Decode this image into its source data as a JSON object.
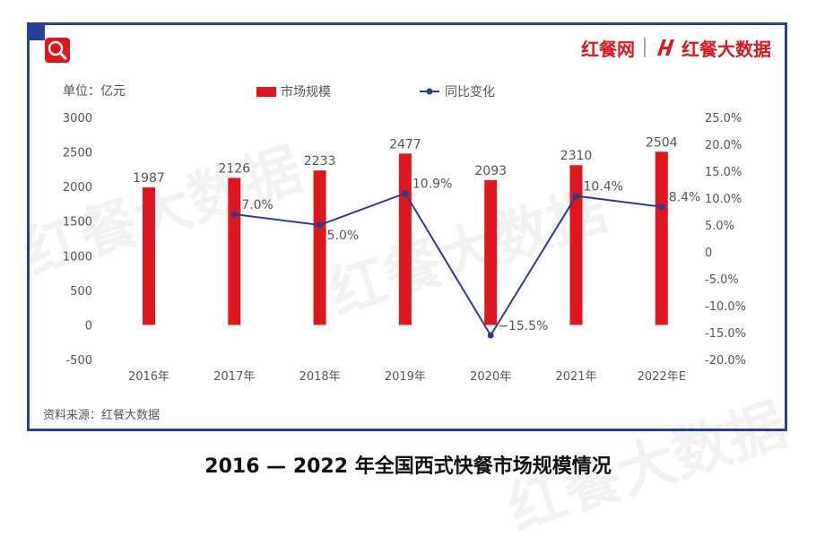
{
  "brand": {
    "name": "红餐网",
    "sub_name": "红餐大数据"
  },
  "footer": {
    "source": "资料来源：红餐大数据"
  },
  "caption": "2016 — 2022 年全国西式快餐市场规模情况",
  "watermark": "红餐大数据",
  "colors": {
    "bar": "#e0161e",
    "line": "#27408b",
    "frame": "#2a3f9d"
  },
  "icons": {
    "badge": "search-icon"
  },
  "chart_data": {
    "type": "bar",
    "unit_label": "单位：亿元",
    "categories": [
      "2016年",
      "2017年",
      "2018年",
      "2019年",
      "2020年",
      "2021年",
      "2022年E"
    ],
    "series": [
      {
        "name": "市场规模",
        "type": "bar",
        "axis": "left",
        "values": [
          1987,
          2126,
          2233,
          2477,
          2093,
          2310,
          2504
        ]
      },
      {
        "name": "同比变化",
        "type": "line",
        "axis": "right",
        "values": [
          null,
          7.0,
          5.0,
          10.9,
          -15.5,
          10.4,
          8.4
        ]
      }
    ],
    "bar_labels": [
      "1987",
      "2126",
      "2233",
      "2477",
      "2093",
      "2310",
      "2504"
    ],
    "line_labels": [
      "",
      "7.0%",
      "5.0%",
      "10.9%",
      "−15.5%",
      "10.4%",
      "8.4%"
    ],
    "y_left": {
      "min": -500,
      "max": 3000,
      "ticks": [
        "3000",
        "2500",
        "2000",
        "1500",
        "1000",
        "500",
        "0",
        "-500"
      ],
      "tick_values": [
        3000,
        2500,
        2000,
        1500,
        1000,
        500,
        0,
        -500
      ]
    },
    "y_right": {
      "min": -20,
      "max": 25,
      "ticks": [
        "25.0%",
        "20.0%",
        "15.0%",
        "10.0%",
        "5.0%",
        "0",
        "-5.0%",
        "-10.0%",
        "-15.0%",
        "-20.0%"
      ],
      "tick_values": [
        25,
        20,
        15,
        10,
        5,
        0,
        -5,
        -10,
        -15,
        -20
      ]
    },
    "legend": {
      "position": "top"
    },
    "grid": false
  }
}
